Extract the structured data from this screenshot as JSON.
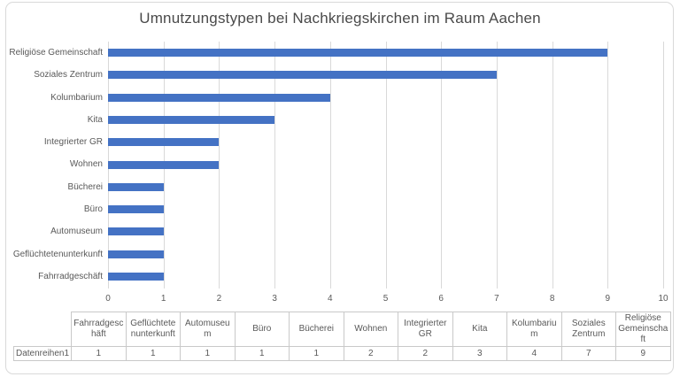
{
  "chart_data": {
    "type": "bar",
    "orientation": "horizontal",
    "title": "Umnutzungstypen bei Nachkriegskirchen im Raum Aachen",
    "categories": [
      "Religiöse Gemeinschaft",
      "Soziales Zentrum",
      "Kolumbarium",
      "Kita",
      "Integrierter GR",
      "Wohnen",
      "Bücherei",
      "Büro",
      "Automuseum",
      "Geflüchtetenunterkunft",
      "Fahrradgeschäft"
    ],
    "series": [
      {
        "name": "Datenreihen1",
        "values": [
          9,
          7,
          4,
          3,
          2,
          2,
          1,
          1,
          1,
          1,
          1
        ]
      }
    ],
    "xlabel": "",
    "ylabel": "",
    "xlim": [
      0,
      10
    ],
    "x_ticks": [
      0,
      1,
      2,
      3,
      4,
      5,
      6,
      7,
      8,
      9,
      10
    ],
    "grid": true,
    "legend": "none",
    "colors": {
      "bar": "#4472C4",
      "gridline": "#D9D9D9",
      "text": "#595959",
      "table_border": "#C9C9C9"
    }
  },
  "table": {
    "row_label": "Datenreihen1",
    "columns": [
      "Fahrradgeschäft",
      "Geflüchtetenunterkunft",
      "Automuseum",
      "Büro",
      "Bücherei",
      "Wohnen",
      "Integrierter GR",
      "Kita",
      "Kolumbarium",
      "Soziales Zentrum",
      "Religiöse Gemeinschaft"
    ],
    "values": [
      "1",
      "1",
      "1",
      "1",
      "1",
      "2",
      "2",
      "3",
      "4",
      "7",
      "9"
    ]
  }
}
